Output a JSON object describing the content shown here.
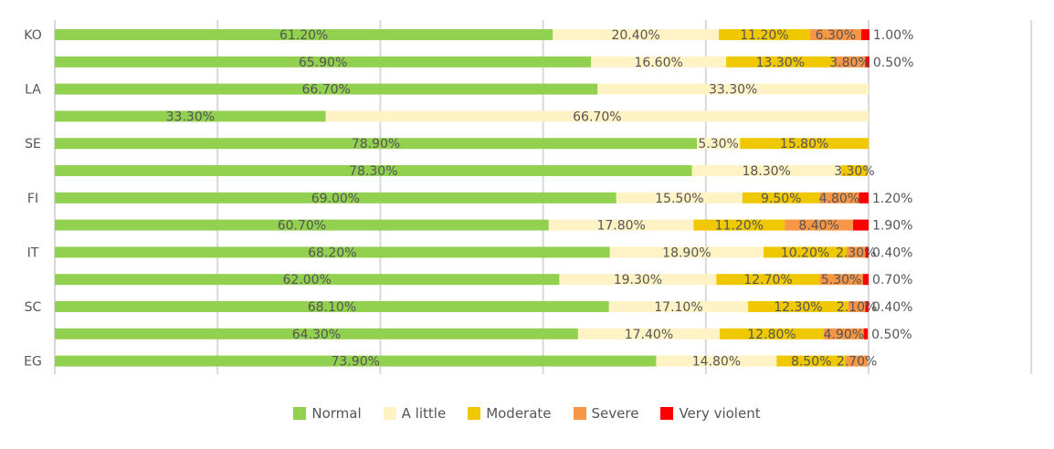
{
  "chart_data": {
    "type": "bar",
    "orientation": "horizontal",
    "stacked": true,
    "title": "",
    "xlabel": "",
    "ylabel": "",
    "xlim": [
      0,
      120
    ],
    "grid": true,
    "legend_position": "bottom",
    "categories": [
      "KO",
      "",
      "LA",
      "",
      "SE",
      "",
      "FI",
      "",
      "IT",
      "",
      "SC",
      "",
      "EG"
    ],
    "series": [
      {
        "name": "Normal",
        "color": "#92d050",
        "values": [
          61.2,
          65.9,
          66.7,
          33.3,
          78.9,
          78.3,
          69.0,
          60.7,
          68.2,
          62.0,
          68.1,
          64.3,
          73.9
        ]
      },
      {
        "name": "A little",
        "color": "#fff2c4",
        "values": [
          20.4,
          16.6,
          33.3,
          66.7,
          5.3,
          18.3,
          15.5,
          17.8,
          18.9,
          19.3,
          17.1,
          17.4,
          14.8
        ]
      },
      {
        "name": "Moderate",
        "color": "#f0c800",
        "values": [
          11.2,
          13.3,
          null,
          null,
          15.8,
          3.3,
          9.5,
          11.2,
          10.2,
          12.7,
          12.3,
          12.8,
          8.5
        ]
      },
      {
        "name": "Severe",
        "color": "#f79646",
        "values": [
          6.3,
          3.8,
          null,
          null,
          null,
          null,
          4.8,
          8.4,
          2.3,
          5.3,
          2.1,
          4.9,
          2.7
        ]
      },
      {
        "name": "Very violent",
        "color": "#ff0000",
        "values": [
          1.0,
          0.5,
          null,
          null,
          null,
          null,
          1.2,
          1.9,
          0.4,
          0.7,
          0.4,
          0.5,
          null
        ]
      }
    ]
  }
}
